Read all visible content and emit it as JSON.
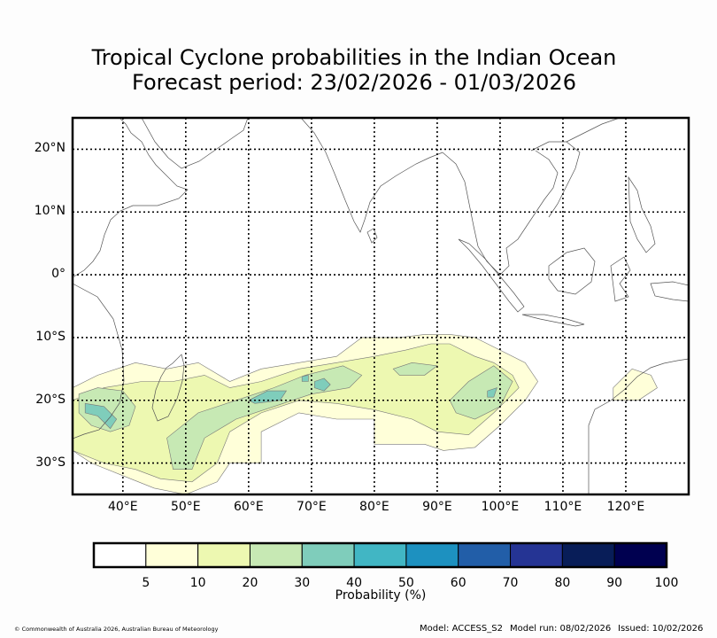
{
  "title_line1": "Tropical Cyclone probabilities in the Indian Ocean",
  "title_line2": "Forecast period: 23/02/2026 - 01/03/2026",
  "map": {
    "lon_range": [
      32,
      130
    ],
    "lat_range": [
      -35,
      25
    ],
    "lat_labels": [
      {
        "lat": 20,
        "label": "20°N"
      },
      {
        "lat": 10,
        "label": "10°N"
      },
      {
        "lat": 0,
        "label": "0°"
      },
      {
        "lat": -10,
        "label": "10°S"
      },
      {
        "lat": -20,
        "label": "20°S"
      },
      {
        "lat": -30,
        "label": "30°S"
      }
    ],
    "lon_labels": [
      {
        "lon": 40,
        "label": "40°E"
      },
      {
        "lon": 50,
        "label": "50°E"
      },
      {
        "lon": 60,
        "label": "60°E"
      },
      {
        "lon": 70,
        "label": "70°E"
      },
      {
        "lon": 80,
        "label": "80°E"
      },
      {
        "lon": 90,
        "label": "90°E"
      },
      {
        "lon": 100,
        "label": "100°E"
      },
      {
        "lon": 110,
        "label": "110°E"
      },
      {
        "lon": 120,
        "label": "120°E"
      }
    ]
  },
  "colorbar": {
    "title": "Probability (%)",
    "colors": [
      "#ffffff",
      "#ffffd9",
      "#edf8b1",
      "#c7e9b4",
      "#7fcdbb",
      "#41b6c4",
      "#1d91c0",
      "#225ea8",
      "#253494",
      "#081d58",
      "#000050"
    ],
    "ticks": [
      "5",
      "10",
      "20",
      "30",
      "40",
      "50",
      "60",
      "70",
      "80",
      "90",
      "100"
    ]
  },
  "footer": {
    "copyright": "© Commonwealth of Australia 2026, Australian Bureau of Meteorology",
    "model": "Model: ACCESS_S2",
    "model_run": "Model run: 08/02/2026",
    "issued": "Issued: 10/02/2026"
  },
  "probability_regions": [
    {
      "level": 5,
      "color": "#ffffd9",
      "points": [
        [
          32,
          -18
        ],
        [
          36,
          -16
        ],
        [
          42,
          -14
        ],
        [
          47,
          -15
        ],
        [
          52,
          -14
        ],
        [
          57,
          -17
        ],
        [
          62,
          -15
        ],
        [
          68,
          -14
        ],
        [
          74,
          -13
        ],
        [
          78,
          -10
        ],
        [
          84,
          -10
        ],
        [
          88,
          -9.5
        ],
        [
          92,
          -9.5
        ],
        [
          96,
          -10
        ],
        [
          100,
          -12
        ],
        [
          104,
          -14
        ],
        [
          106,
          -17
        ],
        [
          104,
          -20
        ],
        [
          102,
          -22
        ],
        [
          100,
          -24
        ],
        [
          96,
          -27.5
        ],
        [
          91,
          -28
        ],
        [
          88,
          -27
        ],
        [
          80,
          -27
        ],
        [
          80,
          -23
        ],
        [
          74,
          -23
        ],
        [
          68,
          -22
        ],
        [
          62,
          -25
        ],
        [
          62,
          -30
        ],
        [
          59,
          -30
        ],
        [
          57,
          -30
        ],
        [
          55,
          -33
        ],
        [
          50,
          -35
        ],
        [
          45,
          -34
        ],
        [
          40,
          -32
        ],
        [
          35,
          -30
        ],
        [
          32,
          -28
        ]
      ]
    },
    {
      "level": 5,
      "color": "#ffffd9",
      "points": [
        [
          118,
          -18
        ],
        [
          121,
          -15
        ],
        [
          124,
          -16
        ],
        [
          125,
          -18
        ],
        [
          122,
          -20
        ],
        [
          118,
          -20
        ]
      ]
    },
    {
      "level": 10,
      "color": "#edf8b1",
      "points": [
        [
          32,
          -20
        ],
        [
          37,
          -18
        ],
        [
          43,
          -17
        ],
        [
          48,
          -17
        ],
        [
          53,
          -16
        ],
        [
          57,
          -18
        ],
        [
          62,
          -17
        ],
        [
          68,
          -15
        ],
        [
          74,
          -14
        ],
        [
          80,
          -13
        ],
        [
          85,
          -12
        ],
        [
          89,
          -11
        ],
        [
          92,
          -11
        ],
        [
          96,
          -13
        ],
        [
          99,
          -14
        ],
        [
          102,
          -16
        ],
        [
          103,
          -18
        ],
        [
          101,
          -20
        ],
        [
          99,
          -22
        ],
        [
          95,
          -25.5
        ],
        [
          90,
          -25
        ],
        [
          86,
          -23
        ],
        [
          80,
          -21.5
        ],
        [
          74,
          -20.5
        ],
        [
          68,
          -20
        ],
        [
          62,
          -22
        ],
        [
          57,
          -25
        ],
        [
          55,
          -30
        ],
        [
          51,
          -33
        ],
        [
          46,
          -32.5
        ],
        [
          42,
          -31
        ],
        [
          37,
          -30
        ],
        [
          32,
          -28
        ]
      ]
    },
    {
      "level": 20,
      "color": "#c7e9b4",
      "points": [
        [
          33,
          -19
        ],
        [
          36,
          -18
        ],
        [
          40,
          -18.5
        ],
        [
          42,
          -21
        ],
        [
          41,
          -24
        ],
        [
          38,
          -25
        ],
        [
          35,
          -24
        ],
        [
          33,
          -22
        ]
      ]
    },
    {
      "level": 20,
      "color": "#c7e9b4",
      "points": [
        [
          47,
          -26
        ],
        [
          52,
          -22
        ],
        [
          58,
          -20
        ],
        [
          64,
          -18
        ],
        [
          69,
          -16
        ],
        [
          75,
          -14.5
        ],
        [
          78,
          -16
        ],
        [
          76,
          -18
        ],
        [
          70,
          -19
        ],
        [
          64,
          -21
        ],
        [
          58,
          -23
        ],
        [
          53,
          -26
        ],
        [
          51,
          -31
        ],
        [
          48,
          -31
        ]
      ]
    },
    {
      "level": 20,
      "color": "#c7e9b4",
      "points": [
        [
          83,
          -15
        ],
        [
          86,
          -14
        ],
        [
          90,
          -14.5
        ],
        [
          88,
          -16
        ],
        [
          84,
          -16
        ]
      ]
    },
    {
      "level": 20,
      "color": "#c7e9b4",
      "points": [
        [
          92,
          -20
        ],
        [
          95,
          -17
        ],
        [
          99,
          -14.5
        ],
        [
          102,
          -17
        ],
        [
          100,
          -21
        ],
        [
          96,
          -23
        ],
        [
          93,
          -22
        ]
      ]
    },
    {
      "level": 30,
      "color": "#7fcdbb",
      "points": [
        [
          60,
          -20
        ],
        [
          63,
          -18.5
        ],
        [
          66,
          -18.5
        ],
        [
          65,
          -20
        ],
        [
          61,
          -20.5
        ]
      ]
    },
    {
      "level": 30,
      "color": "#7fcdbb",
      "points": [
        [
          68.5,
          -16.2
        ],
        [
          69.5,
          -16
        ],
        [
          69.5,
          -17
        ],
        [
          68.5,
          -17
        ]
      ]
    },
    {
      "level": 30,
      "color": "#7fcdbb",
      "points": [
        [
          70.5,
          -17
        ],
        [
          72,
          -16.5
        ],
        [
          73,
          -17.5
        ],
        [
          72,
          -18.5
        ],
        [
          70.5,
          -18
        ]
      ]
    },
    {
      "level": 30,
      "color": "#7fcdbb",
      "points": [
        [
          34,
          -20.5
        ],
        [
          37,
          -21
        ],
        [
          39,
          -23
        ],
        [
          38,
          -24.5
        ],
        [
          36,
          -22.5
        ],
        [
          34,
          -22
        ]
      ]
    },
    {
      "level": 30,
      "color": "#7fcdbb",
      "points": [
        [
          98,
          -18.5
        ],
        [
          99.5,
          -18
        ],
        [
          99,
          -19.5
        ],
        [
          98,
          -19.5
        ]
      ]
    }
  ]
}
